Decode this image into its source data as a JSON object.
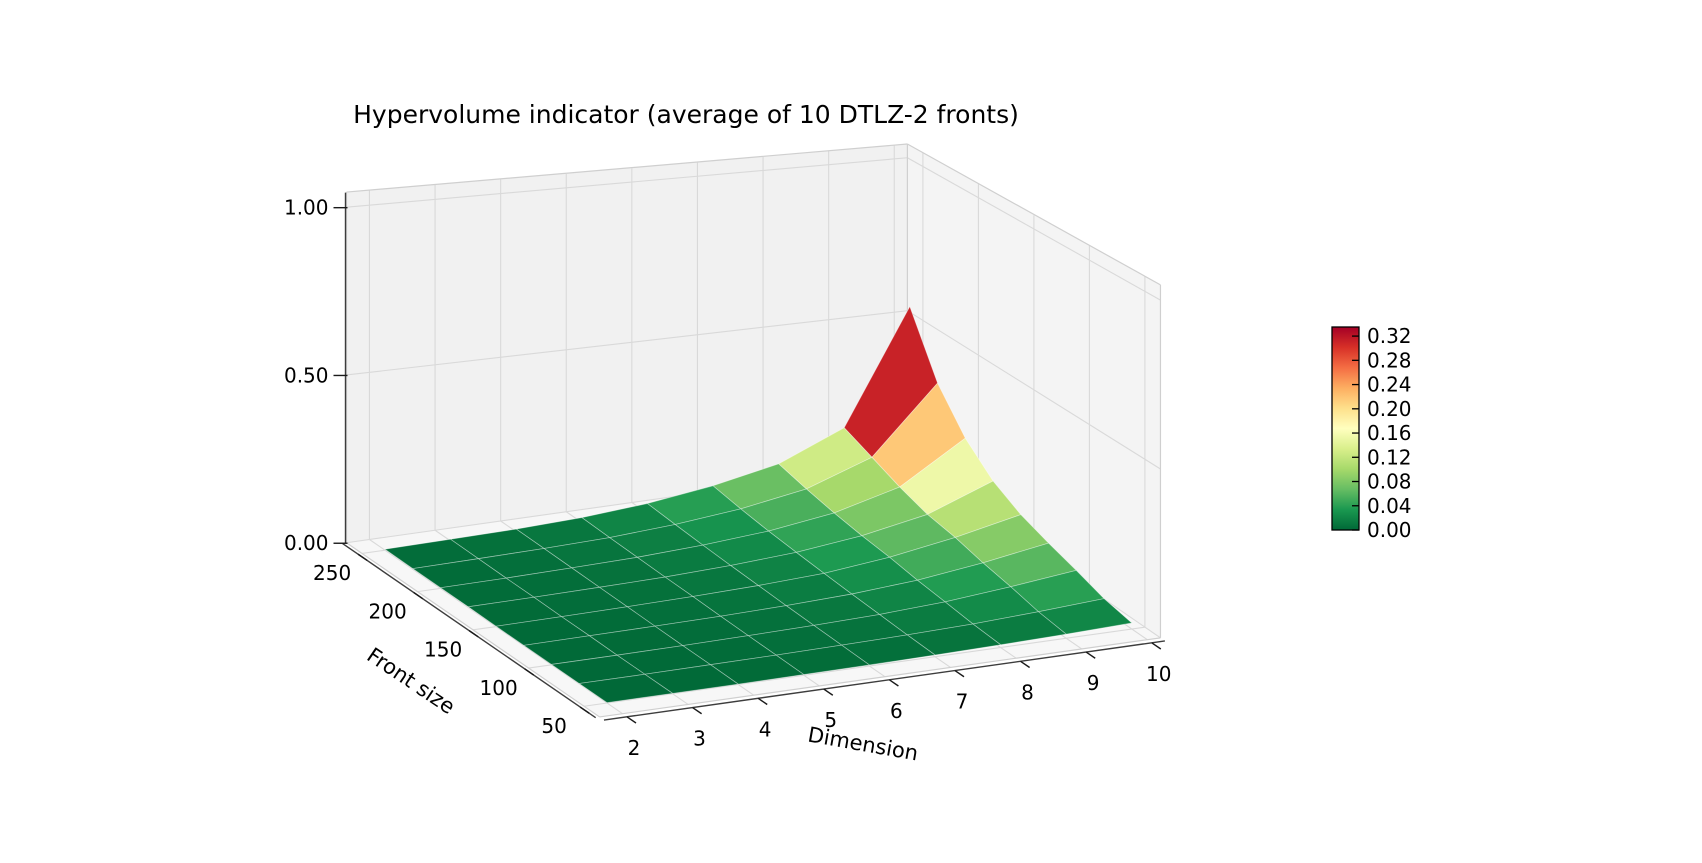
{
  "title": "Hypervolume indicator (average of 10 DTLZ-2 fronts)",
  "chart_data": {
    "type": "surface",
    "title": "Hypervolume indicator (average of 10 DTLZ-2 fronts)",
    "xlabel": "Dimension",
    "ylabel": "Front size",
    "zlabel": "",
    "x": [
      2,
      3,
      4,
      5,
      6,
      7,
      8,
      9,
      10
    ],
    "y": [
      50,
      75,
      100,
      125,
      150,
      175,
      200,
      225,
      250
    ],
    "z": [
      [
        0.001,
        0.001,
        0.001,
        0.002,
        0.003,
        0.005,
        0.008,
        0.012,
        0.018
      ],
      [
        0.001,
        0.001,
        0.002,
        0.003,
        0.005,
        0.008,
        0.013,
        0.022,
        0.034
      ],
      [
        0.001,
        0.001,
        0.002,
        0.004,
        0.007,
        0.012,
        0.022,
        0.04,
        0.062
      ],
      [
        0.001,
        0.002,
        0.003,
        0.005,
        0.009,
        0.016,
        0.03,
        0.055,
        0.088
      ],
      [
        0.001,
        0.002,
        0.004,
        0.007,
        0.012,
        0.021,
        0.042,
        0.075,
        0.118
      ],
      [
        0.002,
        0.003,
        0.005,
        0.008,
        0.015,
        0.027,
        0.05,
        0.088,
        0.165
      ],
      [
        0.002,
        0.003,
        0.006,
        0.01,
        0.019,
        0.034,
        0.062,
        0.115,
        0.242
      ],
      [
        0.002,
        0.004,
        0.007,
        0.012,
        0.024,
        0.044,
        0.078,
        0.15,
        0.36
      ],
      [
        0.003,
        0.005,
        0.008,
        0.015,
        0.03,
        0.057,
        0.098,
        0.185,
        0.55
      ]
    ],
    "xticks": {
      "values": [
        2,
        3,
        4,
        5,
        6,
        7,
        8,
        9,
        10
      ],
      "labels": [
        "2",
        "3",
        "4",
        "5",
        "6",
        "7",
        "8",
        "9",
        "10"
      ]
    },
    "yticks": {
      "values": [
        50,
        100,
        150,
        200,
        250
      ],
      "labels": [
        "50",
        "100",
        "150",
        "200",
        "250"
      ]
    },
    "zticks": {
      "values": [
        0.0,
        0.5,
        1.0
      ],
      "labels": [
        "0.00",
        "0.50",
        "1.00"
      ]
    },
    "xlim": [
      2,
      10
    ],
    "ylim": [
      50,
      250
    ],
    "zlim": [
      0,
      1
    ],
    "grid": true,
    "view": {
      "elev": 30,
      "azim": -60,
      "projection": "perspective"
    },
    "colormap": "RdYlGn_r",
    "colormap_anchors_low_to_high": [
      "#006837",
      "#1a9850",
      "#66bd63",
      "#a6d96a",
      "#d9ef8b",
      "#ffffbf",
      "#fee08b",
      "#fdae61",
      "#f46d43",
      "#d73027",
      "#a50026"
    ],
    "colorbar": {
      "position": "right",
      "vmin": 0.0,
      "vmax": 0.335,
      "tick_values": [
        0.0,
        0.04,
        0.08,
        0.12,
        0.16,
        0.2,
        0.24,
        0.28,
        0.32
      ],
      "tick_labels": [
        "0.00",
        "0.04",
        "0.08",
        "0.12",
        "0.16",
        "0.20",
        "0.24",
        "0.28",
        "0.32"
      ]
    }
  },
  "colors": {
    "background": "#ffffff",
    "left_wall": "#f1f1f1",
    "right_wall": "#f4f4f4",
    "floor": "#f7f7f7",
    "grid_line": "#d9d9d9",
    "pane_edge": "#cfcfcf",
    "axis_line": "#3d3d3d",
    "tick": "#1a1a1a",
    "text": "#000000",
    "face_edge": "rgba(255,255,255,0.4)"
  }
}
